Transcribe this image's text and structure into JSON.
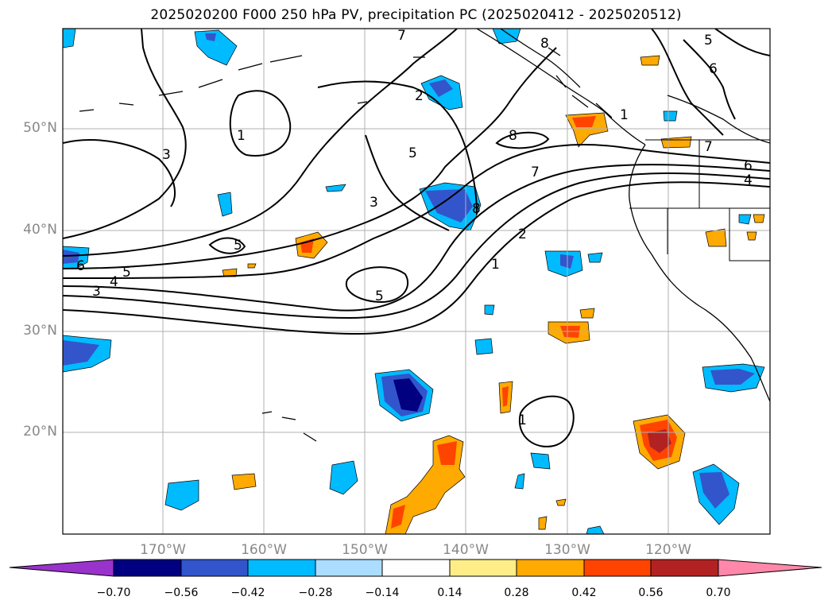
{
  "title": "2025020200 F000 250 hPa PV, precipitation PC (2025020412 - 2025020512)",
  "lat_labels": [
    "50°N",
    "40°N",
    "30°N",
    "20°N"
  ],
  "lon_labels": [
    "170°W",
    "160°W",
    "150°W",
    "140°W",
    "130°W",
    "120°W"
  ],
  "pv_contour_labels": [
    "7",
    "8",
    "5",
    "6",
    "1",
    "8",
    "3",
    "2",
    "5",
    "1",
    "8",
    "7",
    "3",
    "6",
    "4",
    "7",
    "5",
    "5",
    "2",
    "6",
    "4",
    "3",
    "1",
    "5",
    "1"
  ],
  "colorbar": {
    "ticks": [
      "−0.70",
      "−0.56",
      "−0.42",
      "−0.28",
      "−0.14",
      "0.14",
      "0.28",
      "0.42",
      "0.56",
      "0.70"
    ],
    "colors": [
      "#9933cc",
      "#000080",
      "#3355cc",
      "#00bbff",
      "#aaddff",
      "#ffffff",
      "#ffee88",
      "#ffaa00",
      "#ff4400",
      "#b22222",
      "#ff88aa"
    ]
  },
  "map_extent": {
    "lon": [
      -180,
      -110
    ],
    "lat": [
      10,
      60
    ]
  }
}
